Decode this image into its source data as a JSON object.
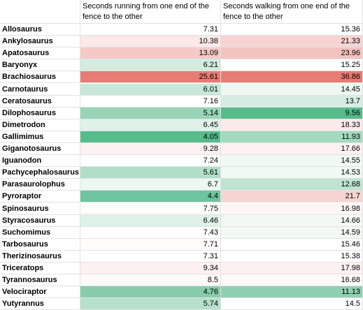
{
  "headers": {
    "name": "",
    "running": "Seconds running from one end of the fence to the other",
    "walking": "Seconds walking from one end of the fence to the other"
  },
  "rows": [
    {
      "name": "Allosaurus",
      "running": "7.31",
      "walking": "15.36",
      "running_color": "#ffffff",
      "walking_color": "#ffffff"
    },
    {
      "name": "Ankylosaurus",
      "running": "10.38",
      "walking": "21.33",
      "running_color": "#fce8e8",
      "walking_color": "#f7d4d2"
    },
    {
      "name": "Apatosaurus",
      "running": "13.09",
      "walking": "23.96",
      "running_color": "#f5c9c6",
      "walking_color": "#f3c3c0"
    },
    {
      "name": "Baryonyx",
      "running": "6.21",
      "walking": "15.25",
      "running_color": "#d2ece0",
      "walking_color": "#ffffff"
    },
    {
      "name": "Brachiosaurus",
      "running": "25.61",
      "walking": "36.86",
      "running_color": "#e67c73",
      "walking_color": "#e67c73"
    },
    {
      "name": "Carnotaurus",
      "running": "6.01",
      "walking": "14.45",
      "running_color": "#c7e8d8",
      "walking_color": "#eef8f2"
    },
    {
      "name": "Ceratosaurus",
      "running": "7.16",
      "walking": "13.7",
      "running_color": "#ffffff",
      "walking_color": "#d6eee2"
    },
    {
      "name": "Dilophosaurus",
      "running": "5.14",
      "walking": "9.56",
      "running_color": "#99d4b6",
      "walking_color": "#57bb8a"
    },
    {
      "name": "Dimetrodon",
      "running": "6.45",
      "walking": "18.33",
      "running_color": "#dff2e9",
      "walking_color": "#fceaea"
    },
    {
      "name": "Gallimimus",
      "running": "4.05",
      "walking": "11.93",
      "running_color": "#57bb8a",
      "walking_color": "#a3d9be"
    },
    {
      "name": "Giganotosaurus",
      "running": "9.28",
      "walking": "17.66",
      "running_color": "#fdf2f2",
      "walking_color": "#fdf1f1"
    },
    {
      "name": "Iguanodon",
      "running": "7.24",
      "walking": "14.55",
      "running_color": "#ffffff",
      "walking_color": "#f0f9f4"
    },
    {
      "name": "Pachycephalosaurus",
      "running": "5.61",
      "walking": "14.53",
      "running_color": "#b1dec8",
      "walking_color": "#f0f9f4"
    },
    {
      "name": "Parasaurolophus",
      "running": "6.7",
      "walking": "12.68",
      "running_color": "#ecf7f2",
      "walking_color": "#bfe4d2"
    },
    {
      "name": "Pyroraptor",
      "running": "4.4",
      "walking": "21.7",
      "running_color": "#6ec4a0",
      "walking_color": "#f7d4d2"
    },
    {
      "name": "Spinosaurus",
      "running": "7.75",
      "walking": "16.98",
      "running_color": "#fefbfb",
      "walking_color": "#fef6f6"
    },
    {
      "name": "Styracosaurus",
      "running": "6.46",
      "walking": "14.66",
      "running_color": "#dff2e9",
      "walking_color": "#f3faf6"
    },
    {
      "name": "Suchomimus",
      "running": "7.43",
      "walking": "14.59",
      "running_color": "#ffffff",
      "walking_color": "#f2f9f5"
    },
    {
      "name": "Tarbosaurus",
      "running": "7.71",
      "walking": "15.46",
      "running_color": "#fffcfc",
      "walking_color": "#ffffff"
    },
    {
      "name": "Therizinosaurus",
      "running": "7.31",
      "walking": "15.38",
      "running_color": "#ffffff",
      "walking_color": "#ffffff"
    },
    {
      "name": "Triceratops",
      "running": "9.34",
      "walking": "17.98",
      "running_color": "#fdf0f0",
      "walking_color": "#fdf0f0"
    },
    {
      "name": "Tyrannosaurus",
      "running": "8.5",
      "walking": "16.68",
      "running_color": "#fefaf9",
      "walking_color": "#fefafa"
    },
    {
      "name": "Velociraptor",
      "running": "4.76",
      "walking": "11.13",
      "running_color": "#86ccab",
      "walking_color": "#8fd0b1"
    },
    {
      "name": "Yutyrannus",
      "running": "5.74",
      "walking": "14.5",
      "running_color": "#b7e0cc",
      "walking_color": "#ffffff"
    }
  ]
}
